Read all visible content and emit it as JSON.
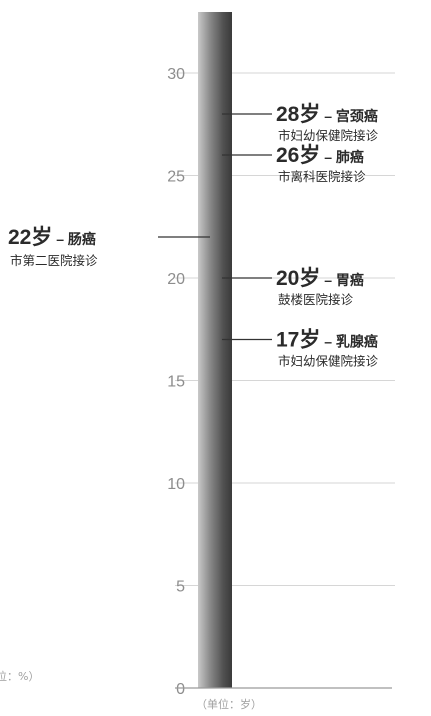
{
  "chart_data": {
    "type": "scatter",
    "axis": {
      "ticks": [
        0,
        5,
        10,
        15,
        20,
        25,
        30
      ],
      "ylim": [
        0,
        33
      ],
      "unit_label": "（单位：岁）"
    },
    "points": [
      {
        "age": 28,
        "age_label": "28岁",
        "disease": "宫颈癌",
        "hospital": "市妇幼保健院接诊"
      },
      {
        "age": 26,
        "age_label": "26岁",
        "disease": "肺癌",
        "hospital": "市离科医院接诊"
      },
      {
        "age": 20,
        "age_label": "20岁",
        "disease": "胃癌",
        "hospital": "鼓楼医院接诊"
      },
      {
        "age": 17,
        "age_label": "17岁",
        "disease": "乳腺癌",
        "hospital": "市妇幼保健院接诊"
      },
      {
        "age": 22,
        "age_label": "22岁",
        "disease": "肠癌",
        "hospital": "市第二医院接诊"
      }
    ],
    "dash": " – ",
    "left_cut_text": "位：%）"
  },
  "colors": {
    "bar_dark": "#3e3e3e",
    "bar_light": "#bdbdbd",
    "grid": "#d6d6d6",
    "tick": "#8d8d8d",
    "text": "#2b2b2b"
  }
}
